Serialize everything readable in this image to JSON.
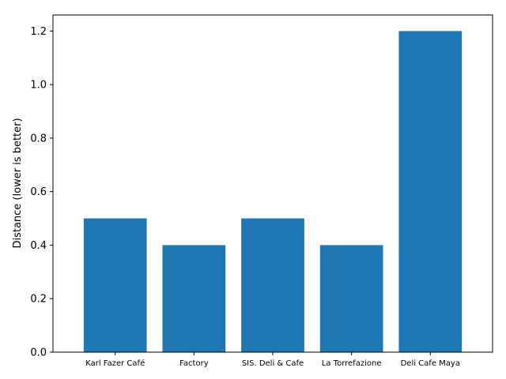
{
  "chart_data": {
    "type": "bar",
    "categories": [
      "Karl Fazer Café",
      "Factory",
      "SIS. Deli & Cafe",
      "La Torrefazione",
      "Deli Cafe Maya"
    ],
    "values": [
      0.5,
      0.4,
      0.5,
      0.4,
      1.2
    ],
    "title": "",
    "xlabel": "",
    "ylabel": "Distance (lower is better)",
    "ylim": [
      0,
      1.26
    ],
    "yticks": [
      0.0,
      0.2,
      0.4,
      0.6,
      0.8,
      1.0,
      1.2
    ],
    "ytick_labels": [
      "0.0",
      "0.2",
      "0.4",
      "0.6",
      "0.8",
      "1.0",
      "1.2"
    ],
    "bar_color": "#1f77b4",
    "grid": false,
    "legend": "none"
  }
}
